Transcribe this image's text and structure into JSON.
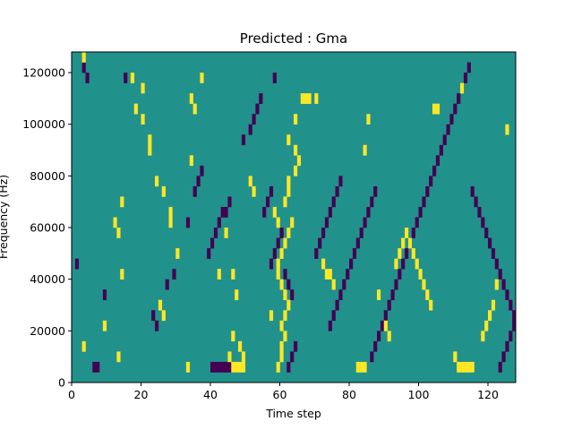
{
  "chart_data": {
    "type": "heatmap",
    "title": "Predicted : Gma",
    "xlabel": "Time step",
    "ylabel": "Frequency (Hz)",
    "xlim": [
      0,
      128
    ],
    "ylim": [
      0,
      128000
    ],
    "xticks": [
      0,
      20,
      40,
      60,
      80,
      100,
      120
    ],
    "yticks": [
      0,
      20000,
      40000,
      60000,
      80000,
      100000,
      120000
    ],
    "n_time_steps": 128,
    "n_frequency_bins": 32,
    "colors": {
      "background": "#21918c",
      "high": "#fde725",
      "low": "#440154"
    },
    "grid": false,
    "legend": "none",
    "cells_high": [
      [
        3,
        31
      ],
      [
        13,
        14
      ],
      [
        12,
        15
      ],
      [
        14,
        10
      ],
      [
        13,
        2
      ],
      [
        14,
        17
      ],
      [
        37,
        29
      ],
      [
        34,
        27
      ],
      [
        35,
        26
      ],
      [
        34,
        21
      ],
      [
        3,
        3
      ],
      [
        9,
        5
      ],
      [
        17,
        29
      ],
      [
        20,
        28
      ],
      [
        20,
        25
      ],
      [
        18,
        26
      ],
      [
        22,
        23
      ],
      [
        22,
        22
      ],
      [
        24,
        19
      ],
      [
        26,
        18
      ],
      [
        28,
        16
      ],
      [
        28,
        15
      ],
      [
        30,
        12
      ],
      [
        25,
        7
      ],
      [
        26,
        6
      ],
      [
        33,
        1
      ],
      [
        42,
        10
      ],
      [
        44,
        14
      ],
      [
        46,
        10
      ],
      [
        47,
        8
      ],
      [
        46,
        4
      ],
      [
        48,
        3
      ],
      [
        45,
        2
      ],
      [
        46,
        1
      ],
      [
        47,
        1
      ],
      [
        48,
        1
      ],
      [
        49,
        1
      ],
      [
        49,
        2
      ],
      [
        51,
        19
      ],
      [
        52,
        18
      ],
      [
        58,
        16
      ],
      [
        59,
        15
      ],
      [
        59,
        11
      ],
      [
        57,
        6
      ],
      [
        59,
        10
      ],
      [
        60,
        9
      ],
      [
        59,
        1
      ],
      [
        60,
        2
      ],
      [
        60,
        3
      ],
      [
        61,
        4
      ],
      [
        60,
        5
      ],
      [
        61,
        6
      ],
      [
        62,
        7
      ],
      [
        61,
        8
      ],
      [
        60,
        12
      ],
      [
        61,
        13
      ],
      [
        62,
        14
      ],
      [
        63,
        15
      ],
      [
        61,
        17
      ],
      [
        62,
        18
      ],
      [
        62,
        19
      ],
      [
        64,
        20
      ],
      [
        65,
        21
      ],
      [
        64,
        22
      ],
      [
        62,
        23
      ],
      [
        64,
        25
      ],
      [
        66,
        27
      ],
      [
        67,
        27
      ],
      [
        68,
        27
      ],
      [
        70,
        27
      ],
      [
        72,
        11
      ],
      [
        73,
        10
      ],
      [
        74,
        10
      ],
      [
        75,
        9
      ],
      [
        82,
        1
      ],
      [
        83,
        1
      ],
      [
        84,
        1
      ],
      [
        84,
        22
      ],
      [
        85,
        25
      ],
      [
        88,
        8
      ],
      [
        90,
        5
      ],
      [
        91,
        4
      ],
      [
        93,
        11
      ],
      [
        94,
        12
      ],
      [
        95,
        13
      ],
      [
        96,
        14
      ],
      [
        97,
        13
      ],
      [
        98,
        12
      ],
      [
        99,
        11
      ],
      [
        100,
        10
      ],
      [
        101,
        9
      ],
      [
        102,
        8
      ],
      [
        103,
        7
      ],
      [
        104,
        26
      ],
      [
        105,
        26
      ],
      [
        112,
        28
      ],
      [
        110,
        2
      ],
      [
        111,
        1
      ],
      [
        112,
        1
      ],
      [
        113,
        1
      ],
      [
        114,
        1
      ],
      [
        115,
        1
      ],
      [
        118,
        4
      ],
      [
        119,
        5
      ],
      [
        120,
        6
      ],
      [
        121,
        7
      ],
      [
        122,
        9
      ],
      [
        125,
        24
      ]
    ],
    "cells_low": [
      [
        1,
        11
      ],
      [
        3,
        30
      ],
      [
        4,
        29
      ],
      [
        6,
        1
      ],
      [
        7,
        1
      ],
      [
        9,
        8
      ],
      [
        15,
        29
      ],
      [
        23,
        6
      ],
      [
        24,
        5
      ],
      [
        27,
        9
      ],
      [
        29,
        10
      ],
      [
        33,
        15
      ],
      [
        35,
        18
      ],
      [
        36,
        19
      ],
      [
        37,
        20
      ],
      [
        39,
        12
      ],
      [
        40,
        13
      ],
      [
        41,
        14
      ],
      [
        42,
        15
      ],
      [
        43,
        16
      ],
      [
        44,
        16
      ],
      [
        45,
        17
      ],
      [
        40,
        1
      ],
      [
        41,
        1
      ],
      [
        42,
        1
      ],
      [
        43,
        1
      ],
      [
        44,
        1
      ],
      [
        45,
        1
      ],
      [
        49,
        23
      ],
      [
        51,
        24
      ],
      [
        52,
        25
      ],
      [
        53,
        26
      ],
      [
        54,
        27
      ],
      [
        58,
        29
      ],
      [
        57,
        18
      ],
      [
        56,
        17
      ],
      [
        55,
        16
      ],
      [
        57,
        11
      ],
      [
        58,
        12
      ],
      [
        59,
        13
      ],
      [
        60,
        14
      ],
      [
        61,
        10
      ],
      [
        62,
        9
      ],
      [
        63,
        8
      ],
      [
        62,
        1
      ],
      [
        63,
        2
      ],
      [
        64,
        3
      ],
      [
        70,
        12
      ],
      [
        71,
        13
      ],
      [
        72,
        14
      ],
      [
        73,
        15
      ],
      [
        74,
        16
      ],
      [
        75,
        17
      ],
      [
        76,
        18
      ],
      [
        77,
        19
      ],
      [
        74,
        5
      ],
      [
        75,
        6
      ],
      [
        76,
        7
      ],
      [
        77,
        8
      ],
      [
        78,
        9
      ],
      [
        79,
        10
      ],
      [
        80,
        11
      ],
      [
        81,
        12
      ],
      [
        82,
        13
      ],
      [
        83,
        14
      ],
      [
        84,
        15
      ],
      [
        85,
        16
      ],
      [
        86,
        17
      ],
      [
        87,
        18
      ],
      [
        86,
        2
      ],
      [
        87,
        3
      ],
      [
        88,
        4
      ],
      [
        89,
        5
      ],
      [
        90,
        6
      ],
      [
        91,
        7
      ],
      [
        92,
        8
      ],
      [
        93,
        9
      ],
      [
        94,
        10
      ],
      [
        95,
        11
      ],
      [
        96,
        12
      ],
      [
        97,
        13
      ],
      [
        98,
        14
      ],
      [
        99,
        15
      ],
      [
        100,
        16
      ],
      [
        101,
        17
      ],
      [
        102,
        18
      ],
      [
        103,
        19
      ],
      [
        104,
        20
      ],
      [
        105,
        21
      ],
      [
        106,
        22
      ],
      [
        107,
        23
      ],
      [
        108,
        24
      ],
      [
        109,
        25
      ],
      [
        110,
        26
      ],
      [
        111,
        27
      ],
      [
        112,
        28
      ],
      [
        113,
        29
      ],
      [
        114,
        30
      ],
      [
        115,
        18
      ],
      [
        116,
        17
      ],
      [
        117,
        16
      ],
      [
        118,
        15
      ],
      [
        119,
        14
      ],
      [
        120,
        13
      ],
      [
        121,
        12
      ],
      [
        122,
        11
      ],
      [
        123,
        10
      ],
      [
        124,
        9
      ],
      [
        125,
        8
      ],
      [
        126,
        7
      ],
      [
        127,
        6
      ],
      [
        127,
        5
      ],
      [
        126,
        4
      ],
      [
        125,
        3
      ],
      [
        124,
        2
      ],
      [
        123,
        1
      ]
    ]
  }
}
